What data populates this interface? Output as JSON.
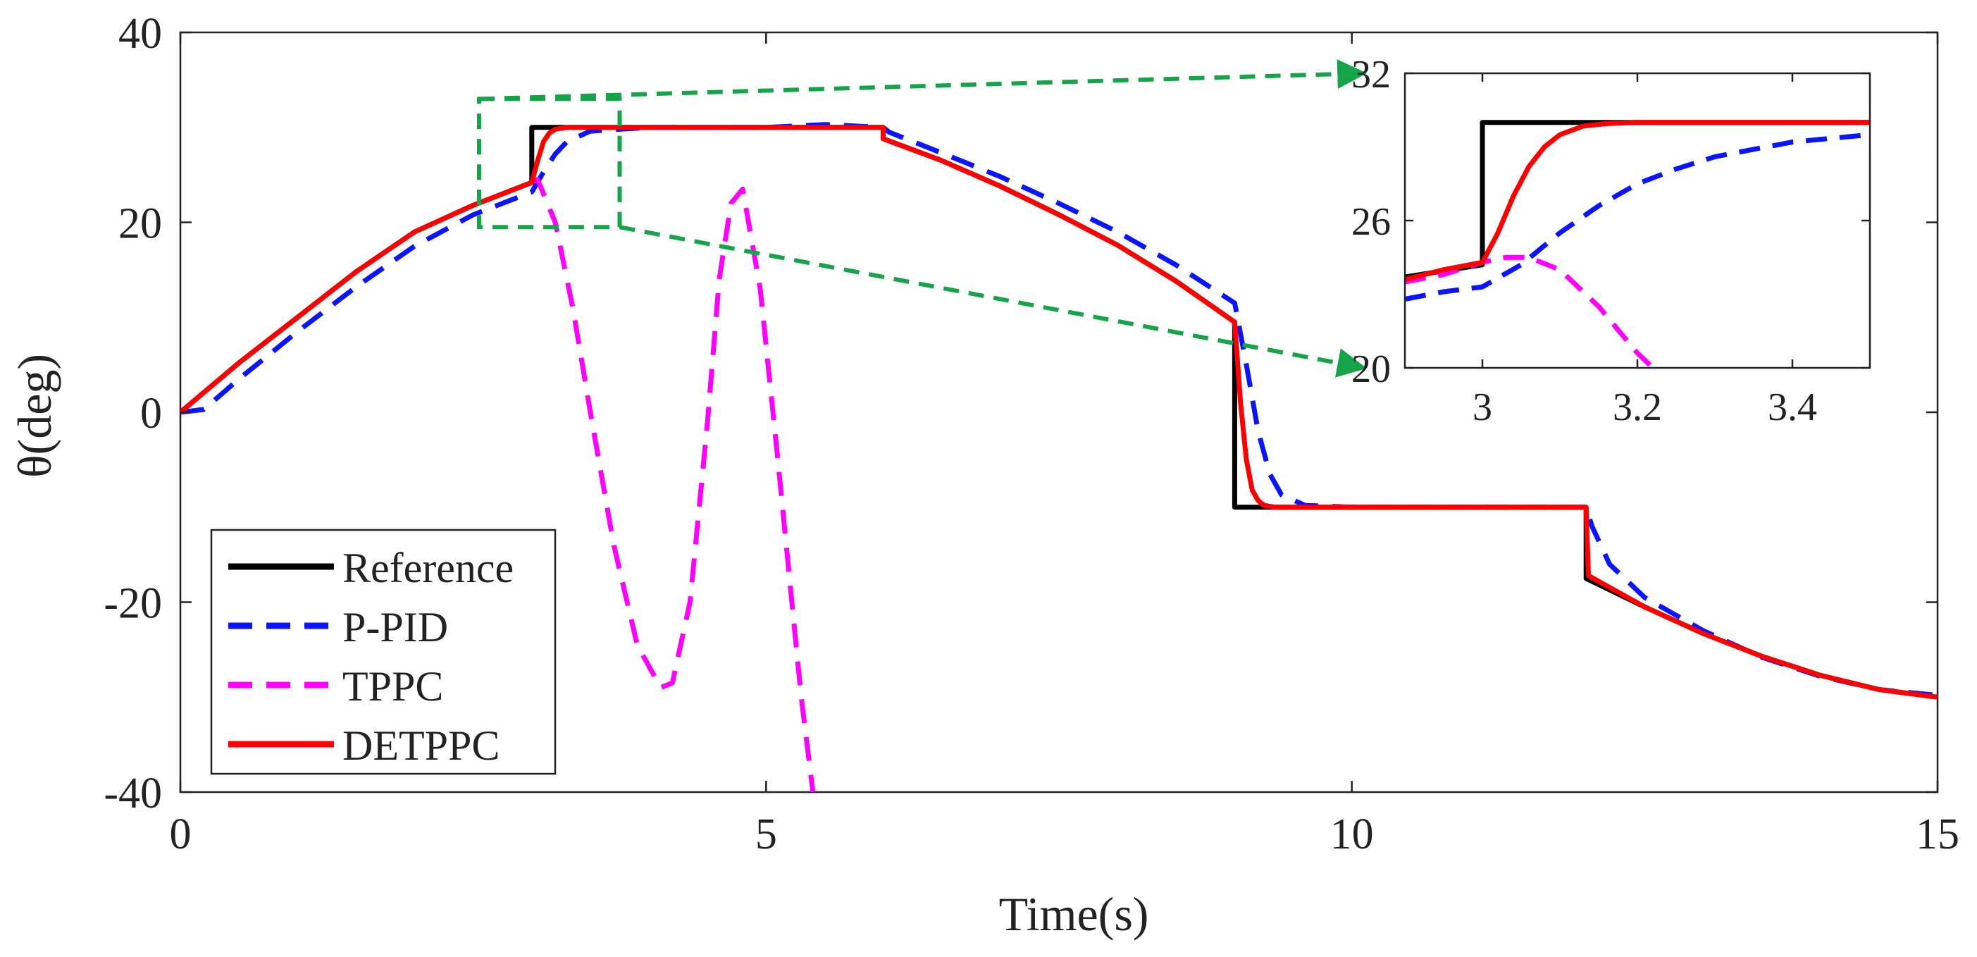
{
  "colors": {
    "reference": "#000000",
    "ppid": "#0a14ff",
    "tppc": "#ff00ff",
    "detppc": "#ff0000",
    "zoom_box": "#16a34a",
    "axis": "#222222"
  },
  "chart_data": {
    "type": "line",
    "title": "",
    "xlabel": "Time(s)",
    "ylabel": "θ(deg)",
    "xlim": [
      0,
      15
    ],
    "ylim": [
      -40,
      40
    ],
    "xticks": [
      0,
      5,
      10,
      15
    ],
    "yticks": [
      -40,
      -20,
      0,
      20,
      40
    ],
    "xtick_labels": [
      "0",
      "5",
      "10",
      "15"
    ],
    "ytick_labels": [
      "-40",
      "-20",
      "0",
      "20",
      "40"
    ],
    "grid": false,
    "legend_position": "bottom-left",
    "legend": [
      "Reference",
      "P-PID",
      "TPPC",
      "DETPPC"
    ],
    "series": [
      {
        "name": "Reference",
        "color": "#000000",
        "style": "solid",
        "x": [
          0,
          0.5,
          1,
          1.5,
          2,
          2.5,
          3,
          3,
          3.5,
          4,
          5,
          6,
          6,
          6.5,
          7,
          7.5,
          8,
          8.5,
          9,
          9,
          9.5,
          10,
          11,
          12,
          12,
          12.5,
          13,
          13.5,
          14,
          14.5,
          15
        ],
        "y": [
          0,
          5.2,
          10,
          14.8,
          19,
          21.8,
          24.2,
          30,
          30,
          30,
          30,
          30,
          28.8,
          26.5,
          23.8,
          20.8,
          17.6,
          13.8,
          9.5,
          -10,
          -10,
          -10,
          -10,
          -10,
          -17.5,
          -20.5,
          -23.3,
          -25.7,
          -27.7,
          -29.2,
          -30
        ]
      },
      {
        "name": "P-PID",
        "color": "#0a14ff",
        "style": "dashed",
        "x": [
          0,
          0.2,
          0.5,
          1,
          1.5,
          2,
          2.5,
          3,
          3.1,
          3.2,
          3.3,
          3.5,
          4,
          5,
          5.5,
          6,
          6.05,
          6.5,
          7,
          7.5,
          8,
          8.5,
          9,
          9.1,
          9.2,
          9.3,
          9.4,
          9.6,
          10,
          11,
          12,
          12.05,
          12.2,
          12.5,
          13,
          13.5,
          14,
          14.5,
          15
        ],
        "y": [
          0,
          0.3,
          3.5,
          8.5,
          13.2,
          17.5,
          20.8,
          23.2,
          25.3,
          27.2,
          28.5,
          29.6,
          30,
          30,
          30.3,
          30,
          29.5,
          27.3,
          24.8,
          22,
          19,
          15.5,
          11.5,
          5,
          -2,
          -6.5,
          -8.7,
          -9.8,
          -10,
          -10,
          -10,
          -12,
          -16,
          -19.5,
          -23,
          -25.8,
          -27.8,
          -29.2,
          -29.8
        ]
      },
      {
        "name": "TPPC",
        "color": "#ff00ff",
        "style": "dashed",
        "x": [
          3,
          3.05,
          3.2,
          3.35,
          3.5,
          3.7,
          3.9,
          4.1,
          4.2,
          4.35,
          4.5,
          4.6,
          4.7,
          4.8,
          4.95,
          5.1,
          5.3,
          5.4
        ],
        "y": [
          24.3,
          24.5,
          20,
          11,
          0,
          -14,
          -24.5,
          -29,
          -28.5,
          -20,
          -1,
          14,
          22,
          23.5,
          13,
          -5,
          -30,
          -40
        ]
      },
      {
        "name": "DETPPC",
        "color": "#ff0000",
        "style": "solid",
        "x": [
          0,
          0.5,
          1,
          1.5,
          2,
          2.5,
          3,
          3.05,
          3.1,
          3.15,
          3.2,
          3.3,
          3.5,
          4,
          5,
          6,
          6,
          6.5,
          7,
          7.5,
          8,
          8.5,
          9,
          9.05,
          9.1,
          9.15,
          9.2,
          9.25,
          9.35,
          9.5,
          10,
          11,
          12,
          12.02,
          12.5,
          13,
          13.5,
          14,
          14.5,
          15
        ],
        "y": [
          0,
          5.2,
          10,
          14.8,
          19,
          21.8,
          24.2,
          26.5,
          28.5,
          29.4,
          29.8,
          30,
          30,
          30,
          30,
          30,
          28.8,
          26.5,
          23.8,
          20.8,
          17.6,
          13.8,
          9.5,
          1,
          -5,
          -8.2,
          -9.3,
          -9.8,
          -10,
          -10,
          -10,
          -10,
          -10,
          -17.2,
          -20.5,
          -23.3,
          -25.7,
          -27.7,
          -29.2,
          -30
        ]
      }
    ],
    "inset": {
      "xlim": [
        2.9,
        3.5
      ],
      "ylim": [
        20,
        32
      ],
      "xticks": [
        3,
        3.2,
        3.4
      ],
      "yticks": [
        20,
        26,
        32
      ],
      "xtick_labels": [
        "3",
        "3.2",
        "3.4"
      ],
      "ytick_labels": [
        "20",
        "26",
        "32"
      ],
      "zoom_region": {
        "x": [
          2.55,
          3.75
        ],
        "y": [
          19.5,
          33
        ]
      },
      "series": [
        {
          "name": "Reference",
          "x": [
            2.9,
            3.0,
            3.0,
            3.5
          ],
          "y": [
            23.7,
            24.2,
            30,
            30
          ]
        },
        {
          "name": "P-PID",
          "x": [
            2.9,
            2.95,
            3.0,
            3.05,
            3.1,
            3.15,
            3.2,
            3.25,
            3.3,
            3.4,
            3.5
          ],
          "y": [
            22.8,
            23.1,
            23.3,
            24.2,
            25.5,
            26.6,
            27.5,
            28.1,
            28.6,
            29.2,
            29.5
          ]
        },
        {
          "name": "TPPC",
          "x": [
            2.9,
            2.95,
            3.0,
            3.03,
            3.06,
            3.1,
            3.15,
            3.2,
            3.22
          ],
          "y": [
            23.5,
            23.8,
            24.3,
            24.5,
            24.5,
            24.0,
            22.5,
            20.6,
            20
          ]
        },
        {
          "name": "DETPPC",
          "x": [
            2.9,
            2.95,
            3.0,
            3.02,
            3.04,
            3.06,
            3.08,
            3.1,
            3.13,
            3.16,
            3.2,
            3.5
          ],
          "y": [
            23.6,
            24.0,
            24.3,
            25.5,
            27.0,
            28.2,
            29.0,
            29.5,
            29.85,
            29.95,
            30,
            30
          ]
        }
      ]
    }
  }
}
